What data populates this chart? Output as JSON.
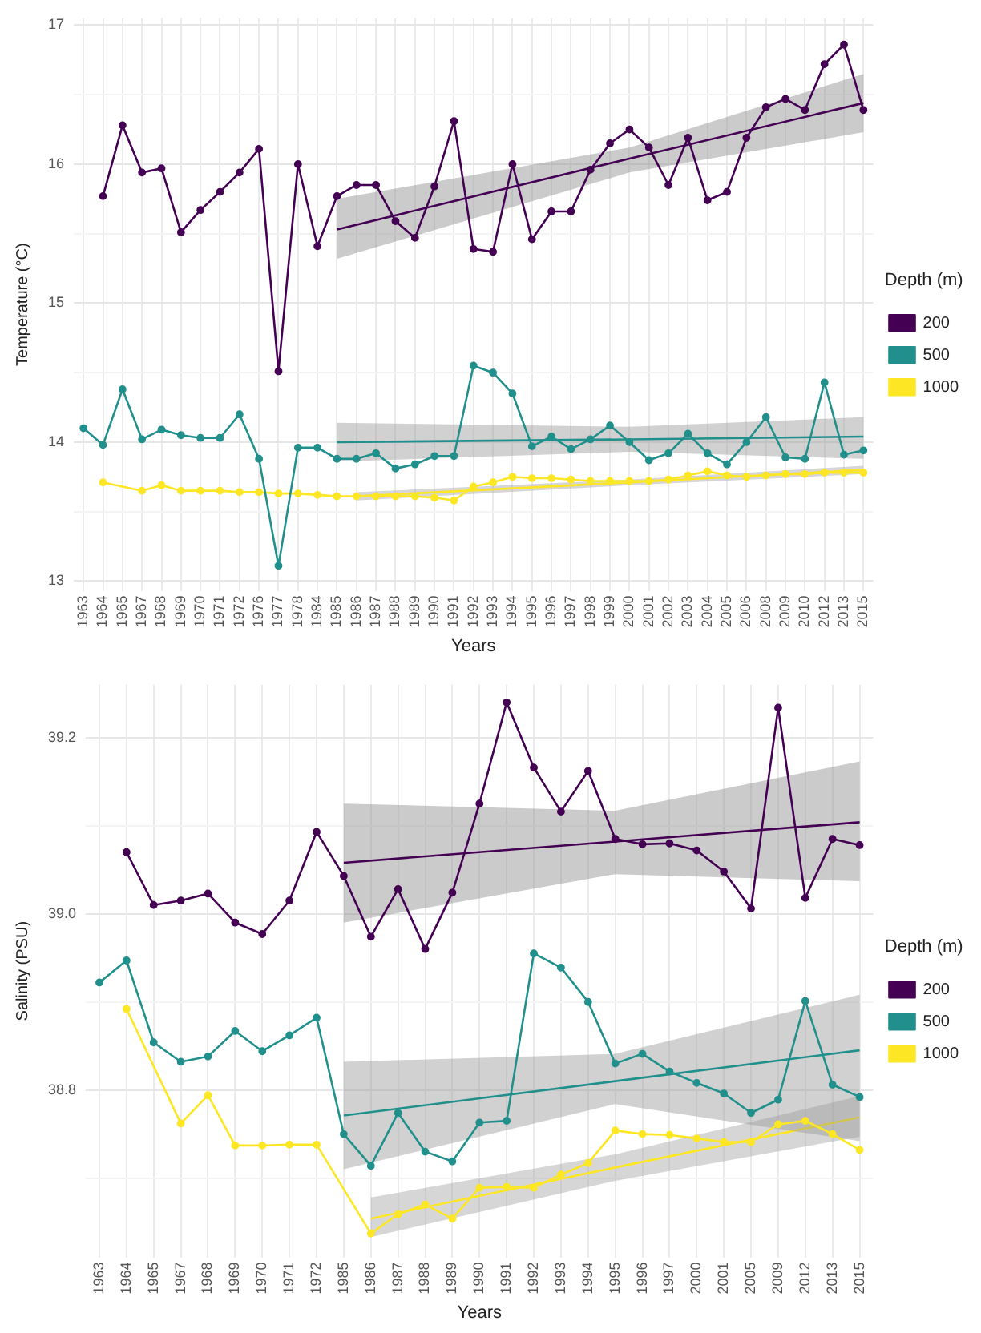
{
  "chart_data": [
    {
      "type": "line",
      "xlabel": "Years",
      "ylabel": "Temperature (°C)",
      "legend_title": "Depth (m)",
      "legend": "right",
      "grid": true,
      "marker": "circle",
      "line_style": "solid",
      "categories": [
        "1963",
        "1964",
        "1965",
        "1967",
        "1968",
        "1969",
        "1970",
        "1971",
        "1972",
        "1976",
        "1977",
        "1978",
        "1984",
        "1985",
        "1986",
        "1987",
        "1988",
        "1989",
        "1990",
        "1991",
        "1992",
        "1993",
        "1994",
        "1995",
        "1996",
        "1997",
        "1998",
        "1999",
        "2000",
        "2001",
        "2002",
        "2003",
        "2004",
        "2005",
        "2006",
        "2008",
        "2009",
        "2010",
        "2012",
        "2013",
        "2015"
      ],
      "ylim": [
        12.93,
        17.05
      ],
      "yticks": [
        {
          "value": 13,
          "label": "13"
        },
        {
          "value": 13.5,
          "label": null
        },
        {
          "value": 14,
          "label": "14"
        },
        {
          "value": 14.5,
          "label": null
        },
        {
          "value": 15,
          "label": "15"
        },
        {
          "value": 15.5,
          "label": null
        },
        {
          "value": 16,
          "label": "16"
        },
        {
          "value": 16.5,
          "label": null
        },
        {
          "value": 17,
          "label": "17"
        }
      ],
      "series": [
        {
          "name": "200",
          "color": "#440154",
          "values": [
            null,
            15.77,
            16.28,
            15.94,
            15.97,
            15.51,
            15.67,
            15.8,
            15.94,
            16.11,
            14.51,
            16.0,
            15.41,
            15.77,
            15.85,
            15.85,
            15.59,
            15.47,
            15.84,
            16.31,
            15.39,
            15.37,
            16.0,
            15.46,
            15.66,
            15.66,
            15.96,
            16.15,
            16.25,
            16.12,
            15.85,
            16.19,
            15.74,
            15.8,
            16.19,
            16.41,
            16.47,
            16.39,
            16.72,
            16.86,
            16.39
          ]
        },
        {
          "name": "500",
          "color": "#21908c",
          "values": [
            14.1,
            13.98,
            14.38,
            14.02,
            14.09,
            14.05,
            14.03,
            14.03,
            14.2,
            13.88,
            13.11,
            13.96,
            13.96,
            13.88,
            13.88,
            13.92,
            13.81,
            13.84,
            13.9,
            13.9,
            14.55,
            14.5,
            14.35,
            13.97,
            14.04,
            13.95,
            14.02,
            14.12,
            14.0,
            13.87,
            13.92,
            14.06,
            13.92,
            13.84,
            14.0,
            14.18,
            13.89,
            13.88,
            14.43,
            13.91,
            13.94
          ]
        },
        {
          "name": "1000",
          "color": "#fde725",
          "values": [
            null,
            13.71,
            null,
            13.65,
            13.69,
            13.65,
            13.65,
            13.65,
            13.64,
            13.64,
            13.63,
            13.63,
            13.62,
            13.61,
            13.61,
            13.61,
            13.61,
            13.61,
            13.6,
            13.58,
            13.68,
            13.71,
            13.75,
            13.74,
            13.74,
            13.73,
            13.72,
            13.72,
            13.72,
            13.72,
            13.73,
            13.76,
            13.79,
            13.76,
            13.75,
            13.76,
            13.77,
            13.77,
            13.78,
            13.78,
            13.78
          ]
        },
        {
          "type": "line",
          "color": "#440154",
          "marker": "none",
          "values": [
            null,
            null,
            null,
            null,
            null,
            null,
            null,
            null,
            null,
            null,
            null,
            null,
            null,
            15.53,
            null,
            null,
            null,
            null,
            null,
            null,
            null,
            null,
            null,
            null,
            null,
            null,
            null,
            null,
            16.04,
            null,
            null,
            null,
            null,
            null,
            null,
            null,
            null,
            null,
            null,
            null,
            16.44
          ],
          "lower": [
            null,
            null,
            null,
            null,
            null,
            null,
            null,
            null,
            null,
            null,
            null,
            null,
            null,
            15.32,
            null,
            null,
            null,
            null,
            null,
            null,
            null,
            null,
            null,
            null,
            null,
            null,
            null,
            null,
            15.94,
            null,
            null,
            null,
            null,
            null,
            null,
            null,
            null,
            null,
            null,
            null,
            16.23
          ],
          "upper": [
            null,
            null,
            null,
            null,
            null,
            null,
            null,
            null,
            null,
            null,
            null,
            null,
            null,
            15.75,
            null,
            null,
            null,
            null,
            null,
            null,
            null,
            null,
            null,
            null,
            null,
            null,
            null,
            null,
            16.12,
            null,
            null,
            null,
            null,
            null,
            null,
            null,
            null,
            null,
            null,
            null,
            16.65
          ]
        },
        {
          "type": "line",
          "color": "#21908c",
          "marker": "none",
          "values": [
            null,
            null,
            null,
            null,
            null,
            null,
            null,
            null,
            null,
            null,
            null,
            null,
            null,
            14.0,
            null,
            null,
            null,
            null,
            null,
            null,
            null,
            null,
            null,
            null,
            null,
            null,
            null,
            null,
            14.02,
            null,
            null,
            null,
            null,
            null,
            null,
            null,
            null,
            null,
            null,
            null,
            14.04
          ],
          "lower": [
            null,
            null,
            null,
            null,
            null,
            null,
            null,
            null,
            null,
            null,
            null,
            null,
            null,
            13.86,
            null,
            null,
            null,
            null,
            null,
            null,
            null,
            null,
            null,
            null,
            null,
            null,
            null,
            null,
            13.93,
            null,
            null,
            null,
            null,
            null,
            null,
            null,
            null,
            null,
            null,
            null,
            13.88
          ],
          "upper": [
            null,
            null,
            null,
            null,
            null,
            null,
            null,
            null,
            null,
            null,
            null,
            null,
            null,
            14.14,
            null,
            null,
            null,
            null,
            null,
            null,
            null,
            null,
            null,
            null,
            null,
            null,
            null,
            null,
            14.11,
            null,
            null,
            null,
            null,
            null,
            null,
            null,
            null,
            null,
            null,
            null,
            14.18
          ]
        },
        {
          "type": "line",
          "color": "#fde725",
          "marker": "none",
          "values": [
            null,
            null,
            null,
            null,
            null,
            null,
            null,
            null,
            null,
            null,
            null,
            null,
            null,
            null,
            13.61,
            null,
            null,
            null,
            null,
            null,
            null,
            null,
            null,
            null,
            null,
            null,
            null,
            null,
            13.71,
            null,
            null,
            null,
            null,
            null,
            null,
            null,
            null,
            null,
            null,
            null,
            13.8
          ],
          "lower": [
            null,
            null,
            null,
            null,
            null,
            null,
            null,
            null,
            null,
            null,
            null,
            null,
            null,
            null,
            13.58,
            null,
            null,
            null,
            null,
            null,
            null,
            null,
            null,
            null,
            null,
            null,
            null,
            null,
            13.69,
            null,
            null,
            null,
            null,
            null,
            null,
            null,
            null,
            null,
            null,
            null,
            13.77
          ],
          "upper": [
            null,
            null,
            null,
            null,
            null,
            null,
            null,
            null,
            null,
            null,
            null,
            null,
            null,
            null,
            13.64,
            null,
            null,
            null,
            null,
            null,
            null,
            null,
            null,
            null,
            null,
            null,
            null,
            null,
            13.73,
            null,
            null,
            null,
            null,
            null,
            null,
            null,
            null,
            null,
            null,
            null,
            13.83
          ]
        }
      ]
    },
    {
      "type": "line",
      "xlabel": "Years",
      "ylabel": "Salinity (PSU)",
      "legend_title": "Depth (m)",
      "legend": "right",
      "grid": true,
      "marker": "circle",
      "line_style": "solid",
      "categories": [
        "1963",
        "1964",
        "1965",
        "1967",
        "1968",
        "1969",
        "1970",
        "1971",
        "1972",
        "1985",
        "1986",
        "1987",
        "1988",
        "1989",
        "1990",
        "1991",
        "1992",
        "1993",
        "1994",
        "1995",
        "1996",
        "1997",
        "2000",
        "2001",
        "2005",
        "2009",
        "2012",
        "2013",
        "2015"
      ],
      "ylim": [
        38.61,
        39.26
      ],
      "yticks": [
        {
          "value": 38.7,
          "label": null
        },
        {
          "value": 38.8,
          "label": "38.8"
        },
        {
          "value": 38.9,
          "label": null
        },
        {
          "value": 39.0,
          "label": "39.0"
        },
        {
          "value": 39.1,
          "label": null
        },
        {
          "value": 39.2,
          "label": "39.2"
        }
      ],
      "series": [
        {
          "name": "200",
          "color": "#440154",
          "values": [
            null,
            39.07,
            39.01,
            39.015,
            39.023,
            38.99,
            38.977,
            39.015,
            39.093,
            39.043,
            38.974,
            39.028,
            38.96,
            39.024,
            39.125,
            39.24,
            39.166,
            39.116,
            39.162,
            39.085,
            39.079,
            39.08,
            39.072,
            39.048,
            39.006,
            39.234,
            39.018,
            39.085,
            39.078
          ]
        },
        {
          "name": "500",
          "color": "#21908c",
          "values": [
            38.922,
            38.947,
            38.854,
            38.832,
            38.838,
            38.867,
            38.844,
            38.862,
            38.882,
            38.75,
            38.714,
            38.774,
            38.73,
            38.719,
            38.763,
            38.765,
            38.955,
            38.939,
            38.9,
            38.83,
            38.841,
            38.821,
            38.808,
            38.796,
            38.774,
            38.789,
            38.901,
            38.806,
            38.792
          ]
        },
        {
          "name": "1000",
          "color": "#fde725",
          "values": [
            null,
            38.892,
            null,
            38.762,
            38.794,
            38.737,
            38.737,
            38.738,
            38.738,
            null,
            38.637,
            38.659,
            38.67,
            38.654,
            38.689,
            38.69,
            38.689,
            38.704,
            38.717,
            38.754,
            38.75,
            38.749,
            38.745,
            38.741,
            38.741,
            38.761,
            38.765,
            38.75,
            38.732
          ]
        },
        {
          "type": "line",
          "color": "#440154",
          "marker": "none",
          "values": [
            null,
            null,
            null,
            null,
            null,
            null,
            null,
            null,
            null,
            39.058,
            null,
            null,
            null,
            null,
            null,
            null,
            null,
            null,
            null,
            39.082,
            null,
            null,
            null,
            null,
            null,
            null,
            null,
            null,
            39.104
          ],
          "lower": [
            null,
            null,
            null,
            null,
            null,
            null,
            null,
            null,
            null,
            38.99,
            null,
            null,
            null,
            null,
            null,
            null,
            null,
            null,
            null,
            39.045,
            null,
            null,
            null,
            null,
            null,
            null,
            null,
            null,
            39.037
          ],
          "upper": [
            null,
            null,
            null,
            null,
            null,
            null,
            null,
            null,
            null,
            39.125,
            null,
            null,
            null,
            null,
            null,
            null,
            null,
            null,
            null,
            39.117,
            null,
            null,
            null,
            null,
            null,
            null,
            null,
            null,
            39.173
          ]
        },
        {
          "type": "line",
          "color": "#21908c",
          "marker": "none",
          "values": [
            null,
            null,
            null,
            null,
            null,
            null,
            null,
            null,
            null,
            38.771,
            null,
            null,
            null,
            null,
            null,
            null,
            null,
            null,
            null,
            38.81,
            null,
            null,
            null,
            null,
            null,
            null,
            null,
            null,
            38.845
          ],
          "lower": [
            null,
            null,
            null,
            null,
            null,
            null,
            null,
            null,
            null,
            38.71,
            null,
            null,
            null,
            null,
            null,
            null,
            null,
            null,
            null,
            38.784,
            null,
            null,
            null,
            null,
            null,
            null,
            null,
            null,
            38.742
          ],
          "upper": [
            null,
            null,
            null,
            null,
            null,
            null,
            null,
            null,
            null,
            38.832,
            null,
            null,
            null,
            null,
            null,
            null,
            null,
            null,
            null,
            38.841,
            null,
            null,
            null,
            null,
            null,
            null,
            null,
            null,
            38.908
          ]
        },
        {
          "type": "line",
          "color": "#fde725",
          "marker": "none",
          "values": [
            null,
            null,
            null,
            null,
            null,
            null,
            null,
            null,
            null,
            null,
            38.654,
            null,
            null,
            null,
            null,
            null,
            null,
            null,
            null,
            38.712,
            null,
            null,
            null,
            null,
            null,
            null,
            null,
            null,
            38.769
          ],
          "lower": [
            null,
            null,
            null,
            null,
            null,
            null,
            null,
            null,
            null,
            null,
            38.633,
            null,
            null,
            null,
            null,
            null,
            null,
            null,
            null,
            38.697,
            null,
            null,
            null,
            null,
            null,
            null,
            null,
            null,
            38.747
          ],
          "upper": [
            null,
            null,
            null,
            null,
            null,
            null,
            null,
            null,
            null,
            null,
            38.678,
            null,
            null,
            null,
            null,
            null,
            null,
            null,
            null,
            38.727,
            null,
            null,
            null,
            null,
            null,
            null,
            null,
            null,
            38.793
          ]
        }
      ]
    }
  ]
}
